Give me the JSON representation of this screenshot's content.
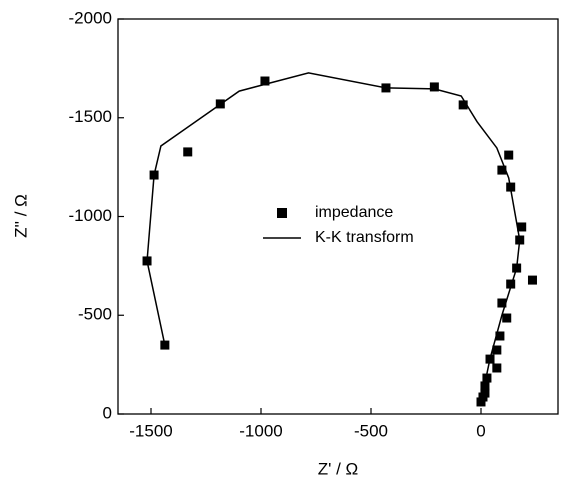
{
  "chart_data": {
    "type": "scatter-line",
    "xlabel": "Z' / Ω",
    "ylabel": "Z'' / Ω",
    "xlim": [
      -1650,
      350
    ],
    "ylim": [
      0,
      -2000
    ],
    "xticks": [
      -1500,
      -1000,
      -500,
      0
    ],
    "yticks": [
      0,
      -500,
      -1000,
      -1500,
      -2000
    ],
    "legend": "center",
    "series": [
      {
        "name": "impedance",
        "style": "markers",
        "color": "#000000",
        "x": [
          -1437,
          -1518,
          -1486,
          -1333,
          -1185,
          -982,
          -432,
          -212,
          -81,
          95,
          126,
          135,
          185,
          176,
          162,
          234,
          135,
          95,
          117,
          86,
          72,
          72,
          41,
          27,
          18,
          18,
          9,
          0
        ],
        "values": [
          -349,
          -775,
          -1210,
          -1327,
          -1570,
          -1686,
          -1651,
          -1656,
          -1565,
          -1235,
          -1311,
          -1149,
          -947,
          -881,
          -739,
          -678,
          -658,
          -562,
          -486,
          -395,
          -324,
          -233,
          -278,
          -182,
          -142,
          -106,
          -86,
          -61
        ]
      },
      {
        "name": "K-K transform",
        "style": "line",
        "color": "#000000",
        "x": [
          -1437,
          -1518,
          -1486,
          -1455,
          -1099,
          -784,
          -432,
          -212,
          -90,
          -18,
          72,
          126,
          176,
          162,
          95,
          41,
          0
        ],
        "values": [
          -349,
          -775,
          -1210,
          -1357,
          -1635,
          -1727,
          -1651,
          -1646,
          -1610,
          -1480,
          -1347,
          -1195,
          -881,
          -739,
          -500,
          -280,
          -61
        ]
      }
    ]
  }
}
